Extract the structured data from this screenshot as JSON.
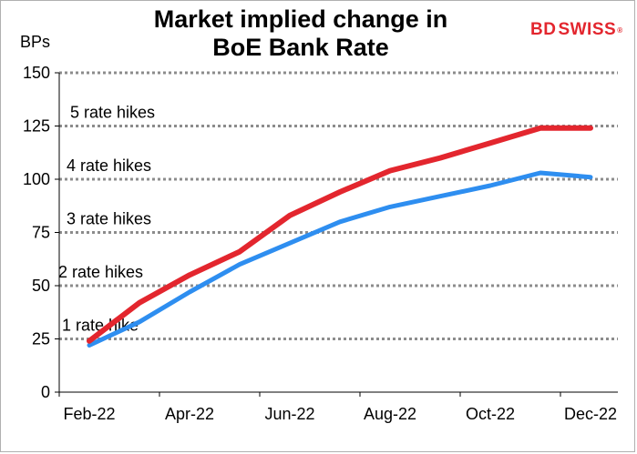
{
  "chart_data": {
    "type": "line",
    "title": "Market implied change in BoE Bank Rate",
    "title_lines": [
      "Market implied change in",
      "BoE Bank Rate"
    ],
    "ylabel": "BPs",
    "xlabel": "",
    "ylim": [
      0,
      150
    ],
    "yticks": [
      0,
      25,
      50,
      75,
      100,
      125,
      150
    ],
    "x_tick_labels": [
      "Feb-22",
      "Apr-22",
      "Jun-22",
      "Aug-22",
      "Oct-22",
      "Dec-22"
    ],
    "grid": "horizontal dotted",
    "x": [
      "Feb-22",
      "Mar-22",
      "Apr-22",
      "May-22",
      "Jun-22",
      "Jul-22",
      "Aug-22",
      "Sep-22",
      "Oct-22",
      "Nov-22",
      "Dec-22"
    ],
    "series": [
      {
        "color": "#e3262e",
        "values": [
          24,
          42,
          55,
          66,
          83,
          94,
          104,
          110,
          117,
          124,
          124
        ]
      },
      {
        "color": "#2e8ef0",
        "values": [
          22,
          33,
          47,
          60,
          70,
          80,
          87,
          92,
          97,
          103,
          101
        ]
      }
    ],
    "annotations": [
      {
        "text": "5 rate hikes",
        "y": 125
      },
      {
        "text": "4 rate hikes",
        "y": 100
      },
      {
        "text": "3 rate hikes",
        "y": 75
      },
      {
        "text": "2 rate hikes",
        "y": 50
      },
      {
        "text": "1 rate hike",
        "y": 25
      }
    ]
  },
  "logo": {
    "mark": "BD",
    "text": "SWISS",
    "sup": "®"
  }
}
